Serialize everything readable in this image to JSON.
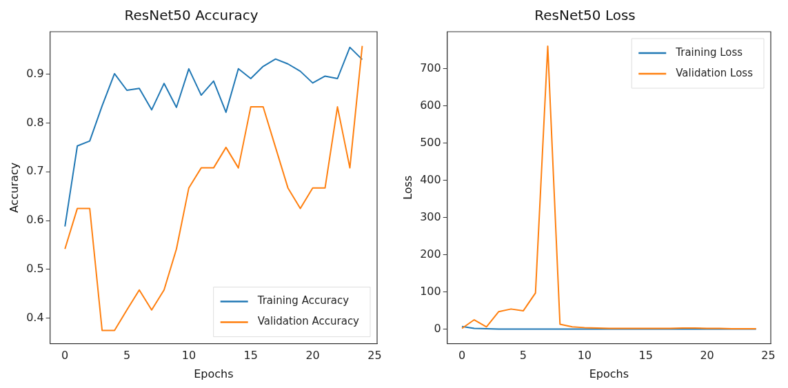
{
  "chart_data": [
    {
      "type": "line",
      "title": "ResNet50 Accuracy",
      "xlabel": "Epochs",
      "ylabel": "Accuracy",
      "x": [
        0,
        1,
        2,
        3,
        4,
        5,
        6,
        7,
        8,
        9,
        10,
        11,
        12,
        13,
        14,
        15,
        16,
        17,
        18,
        19,
        20,
        21,
        22,
        23,
        24
      ],
      "series": [
        {
          "name": "Training Accuracy",
          "color": "#1f77b4",
          "values": [
            0.588,
            0.753,
            0.763,
            0.835,
            0.901,
            0.867,
            0.871,
            0.827,
            0.881,
            0.832,
            0.911,
            0.857,
            0.886,
            0.822,
            0.911,
            0.891,
            0.916,
            0.931,
            0.921,
            0.906,
            0.882,
            0.896,
            0.891,
            0.955,
            0.93
          ]
        },
        {
          "name": "Validation Accuracy",
          "color": "#ff7f0e",
          "values": [
            0.542,
            0.625,
            0.625,
            0.375,
            0.375,
            0.417,
            0.458,
            0.417,
            0.458,
            0.542,
            0.667,
            0.708,
            0.708,
            0.75,
            0.708,
            0.833,
            0.833,
            0.75,
            0.667,
            0.625,
            0.667,
            0.667,
            0.833,
            0.708,
            0.958
          ]
        }
      ],
      "xlim": [
        -1.2,
        25.2
      ],
      "xticks": [
        0,
        5,
        10,
        15,
        20,
        25
      ],
      "ylim": [
        0.348,
        0.987
      ],
      "yticks": [
        0.4,
        0.5,
        0.6,
        0.7,
        0.8,
        0.9
      ],
      "grid": false,
      "legend": "bottom right",
      "marker": "none",
      "line_style": "solid"
    },
    {
      "type": "line",
      "title": "ResNet50 Loss",
      "xlabel": "Epochs",
      "ylabel": "Loss",
      "x": [
        0,
        1,
        2,
        3,
        4,
        5,
        6,
        7,
        8,
        9,
        10,
        11,
        12,
        13,
        14,
        15,
        16,
        17,
        18,
        19,
        20,
        21,
        22,
        23,
        24
      ],
      "series": [
        {
          "name": "Training Loss",
          "color": "#1f77b4",
          "values": [
            7,
            2,
            1,
            0,
            0,
            0,
            0,
            0,
            0,
            0,
            0,
            0,
            0,
            0,
            0,
            0,
            0,
            0,
            0,
            0,
            0,
            0,
            0,
            0,
            0
          ]
        },
        {
          "name": "Validation Loss",
          "color": "#ff7f0e",
          "values": [
            2,
            25,
            6,
            47,
            54,
            49,
            97,
            760,
            13,
            6,
            4,
            3,
            2,
            2,
            2,
            2,
            2,
            2,
            3,
            3,
            2,
            2,
            1,
            1,
            1
          ]
        }
      ],
      "xlim": [
        -1.2,
        25.2
      ],
      "xticks": [
        0,
        5,
        10,
        15,
        20,
        25
      ],
      "ylim": [
        -39,
        799
      ],
      "yticks": [
        0,
        100,
        200,
        300,
        400,
        500,
        600,
        700
      ],
      "grid": false,
      "legend": "top right",
      "marker": "none",
      "line_style": "solid"
    }
  ]
}
